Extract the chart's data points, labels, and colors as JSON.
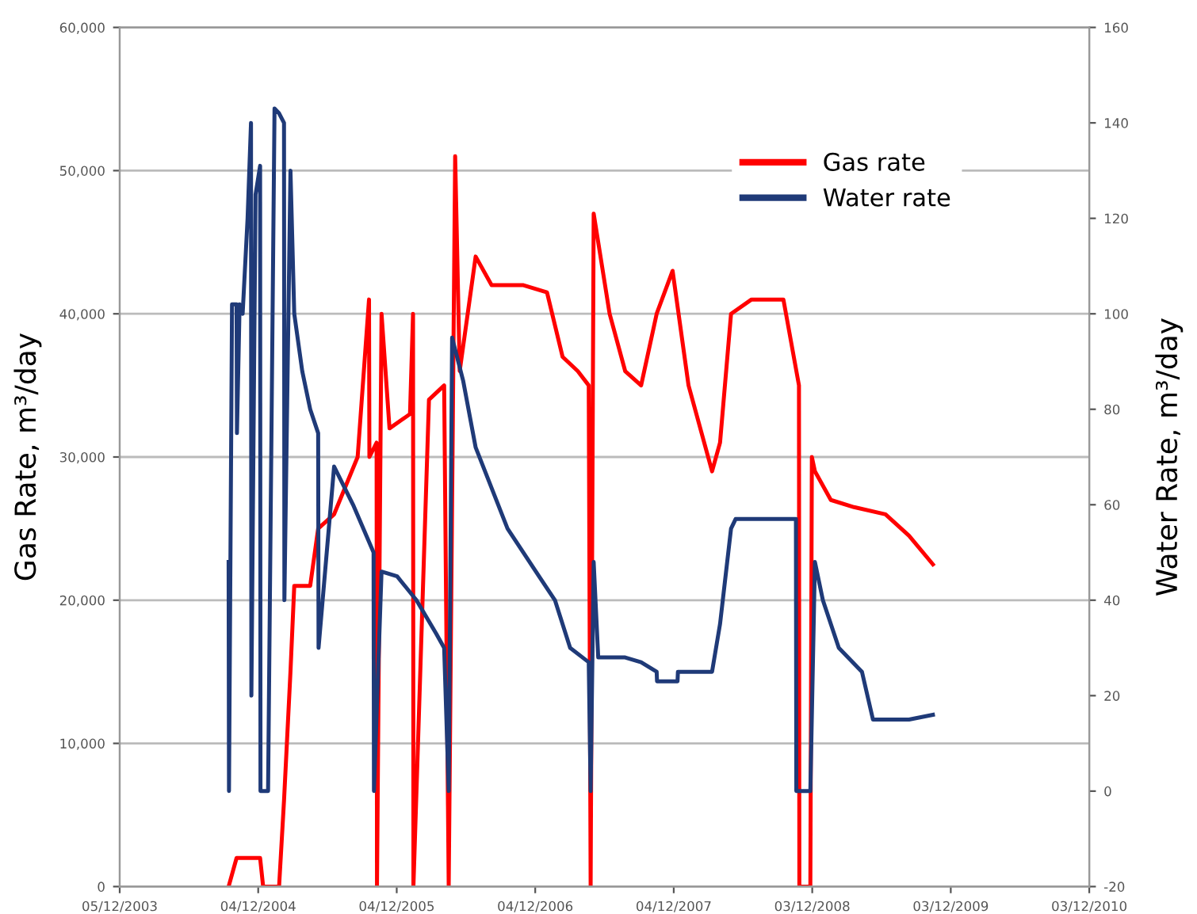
{
  "chart_data": {
    "type": "line",
    "ylabel": "Gas Rate, m³/day",
    "y2label": "Water Rate, m³/day",
    "xlim": [
      "2003-12-05",
      "2010-12-03"
    ],
    "xticks": [
      {
        "value": "2003-12-05",
        "label": "05/12/2003"
      },
      {
        "value": "2004-12-04",
        "label": "04/12/2004"
      },
      {
        "value": "2005-12-04",
        "label": "04/12/2005"
      },
      {
        "value": "2006-12-04",
        "label": "04/12/2006"
      },
      {
        "value": "2007-12-04",
        "label": "04/12/2007"
      },
      {
        "value": "2008-12-03",
        "label": "03/12/2008"
      },
      {
        "value": "2009-12-03",
        "label": "03/12/2009"
      },
      {
        "value": "2010-12-03",
        "label": "03/12/2010"
      }
    ],
    "ylim": [
      0,
      60000
    ],
    "yticks": [
      0,
      {
        "value": 10000,
        "label": "10,000"
      },
      {
        "value": 20000,
        "label": "20,000"
      },
      {
        "value": 30000,
        "label": "30,000"
      },
      {
        "value": 40000,
        "label": "40,000"
      },
      {
        "value": 50000,
        "label": "50,000"
      },
      {
        "value": 60000,
        "label": "60,000"
      }
    ],
    "y2lim": [
      -20,
      160
    ],
    "y2ticks": [
      -20,
      0,
      20,
      40,
      60,
      80,
      100,
      120,
      140,
      160
    ],
    "grid": "y",
    "legend": "top right",
    "marker": "none",
    "line_style": "solid",
    "series": [
      {
        "name": "Gas rate",
        "color": "#ff0000",
        "axis": "y",
        "x": [
          "2004-09-17",
          "2004-10-08",
          "2004-12-09",
          "2004-12-17",
          "2005-01-28",
          "2005-02-10",
          "2005-02-27",
          "2005-03-09",
          "2005-04-20",
          "2005-05-11",
          "2005-06-22",
          "2005-08-23",
          "2005-09-22",
          "2005-09-23",
          "2005-10-12",
          "2005-10-13",
          "2005-10-25",
          "2005-11-15",
          "2006-01-08",
          "2006-01-16",
          "2006-01-17",
          "2006-02-27",
          "2006-04-08",
          "2006-04-20",
          "2006-05-07",
          "2006-05-19",
          "2006-06-30",
          "2006-08-11",
          "2006-11-03",
          "2007-01-04",
          "2007-02-14",
          "2007-03-26",
          "2007-04-24",
          "2007-04-29",
          "2007-05-07",
          "2007-06-18",
          "2007-07-29",
          "2007-09-09",
          "2007-10-20",
          "2007-12-01",
          "2008-01-12",
          "2008-03-14",
          "2008-04-04",
          "2008-05-03",
          "2008-06-26",
          "2008-09-18",
          "2008-10-29",
          "2008-10-30",
          "2008-11-28",
          "2008-12-02",
          "2008-12-10",
          "2009-01-21",
          "2009-03-23",
          "2009-06-14",
          "2009-08-15",
          "2009-10-17"
        ],
        "values": [
          0,
          2000,
          2000,
          0,
          0,
          6000,
          15000,
          21000,
          21000,
          25000,
          26000,
          30000,
          41000,
          30000,
          31000,
          0,
          40000,
          32000,
          33000,
          40000,
          0,
          34000,
          35000,
          0,
          51000,
          36000,
          44000,
          42000,
          42000,
          41500,
          37000,
          36000,
          35000,
          0,
          47000,
          40000,
          36000,
          35000,
          40000,
          43000,
          35000,
          29000,
          31000,
          40000,
          41000,
          41000,
          35000,
          0,
          0,
          30000,
          29000,
          27000,
          26500,
          26000,
          24500,
          22500
        ]
      },
      {
        "name": "Water rate",
        "color": "#1f3a78",
        "axis": "y2",
        "x": [
          "2004-09-17",
          "2004-09-18",
          "2004-09-26",
          "2004-10-08",
          "2004-10-09",
          "2004-10-16",
          "2004-10-24",
          "2004-11-06",
          "2004-11-15",
          "2004-11-16",
          "2004-11-27",
          "2004-12-09",
          "2004-12-10",
          "2004-12-30",
          "2005-01-16",
          "2005-01-28",
          "2005-02-10",
          "2005-02-11",
          "2005-02-27",
          "2005-03-09",
          "2005-03-30",
          "2005-04-20",
          "2005-05-11",
          "2005-05-12",
          "2005-06-22",
          "2005-08-11",
          "2005-10-04",
          "2005-10-05",
          "2005-10-25",
          "2005-12-05",
          "2006-01-25",
          "2006-03-18",
          "2006-04-08",
          "2006-04-20",
          "2006-04-29",
          "2006-05-28",
          "2006-06-30",
          "2006-09-22",
          "2006-12-14",
          "2007-01-25",
          "2007-03-06",
          "2007-04-24",
          "2007-04-29",
          "2007-05-07",
          "2007-05-19",
          "2007-07-29",
          "2007-09-09",
          "2007-10-20",
          "2007-10-21",
          "2007-12-14",
          "2007-12-15",
          "2008-03-14",
          "2008-04-04",
          "2008-05-03",
          "2008-05-15",
          "2008-10-21",
          "2008-10-22",
          "2008-11-28",
          "2008-12-10",
          "2008-12-31",
          "2009-02-11",
          "2009-04-13",
          "2009-05-12",
          "2009-08-15",
          "2009-10-17"
        ],
        "values": [
          48,
          0,
          102,
          102,
          75,
          102,
          100,
          120,
          140,
          20,
          125,
          131,
          0,
          0,
          143,
          142,
          140,
          40,
          130,
          100,
          88,
          80,
          75,
          30,
          68,
          60,
          50,
          0,
          46,
          45,
          40,
          33,
          30,
          0,
          95,
          86,
          72,
          55,
          45,
          40,
          30,
          27,
          0,
          48,
          28,
          28,
          27,
          25,
          23,
          23,
          25,
          25,
          35,
          55,
          57,
          57,
          0,
          0,
          48,
          40,
          30,
          25,
          15,
          15,
          16
        ]
      }
    ]
  }
}
